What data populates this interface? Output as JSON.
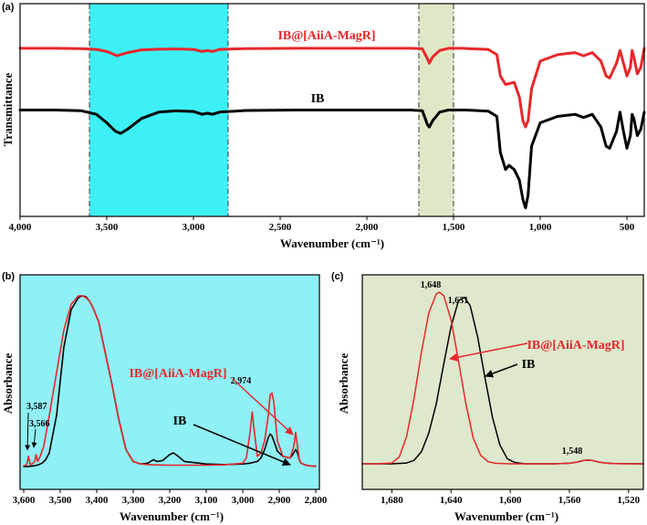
{
  "colors": {
    "red": "#e8262a",
    "black": "#000000",
    "cyan": "#3df0f5",
    "olive": "#dfe8c6",
    "panel_b_bg": "#8ff0f5",
    "panel_c_bg": "#dee8cc"
  },
  "chart_data": [
    {
      "panel": "(a)",
      "type": "line",
      "xlabel": "Wavenumber (cm⁻¹)",
      "ylabel": "Transmittance",
      "xlim": [
        4000,
        400
      ],
      "xticks": [
        "4,000",
        "3,500",
        "3,000",
        "2,500",
        "2,000",
        "1,500",
        "1,000",
        "500"
      ],
      "xtick_values": [
        4000,
        3500,
        3000,
        2500,
        2000,
        1500,
        1000,
        500
      ],
      "highlight_regions": [
        {
          "from": 3600,
          "to": 2800,
          "color": "cyan"
        },
        {
          "from": 1700,
          "to": 1500,
          "color": "olive"
        }
      ],
      "series": [
        {
          "name": "IB@[AiiA-MagR]",
          "color": "red",
          "label_at": [
            2500,
            0.86
          ],
          "x": [
            4000,
            3800,
            3650,
            3560,
            3500,
            3440,
            3380,
            3300,
            3200,
            3100,
            3000,
            2950,
            2920,
            2890,
            2850,
            2700,
            2400,
            2000,
            1750,
            1680,
            1650,
            1640,
            1620,
            1580,
            1530,
            1450,
            1400,
            1300,
            1250,
            1230,
            1200,
            1150,
            1120,
            1100,
            1085,
            1070,
            1050,
            1000,
            900,
            800,
            750,
            700,
            650,
            620,
            600,
            560,
            540,
            520,
            500,
            480,
            470,
            460,
            440,
            420,
            400
          ],
          "y": [
            0.79,
            0.79,
            0.789,
            0.785,
            0.775,
            0.755,
            0.77,
            0.783,
            0.786,
            0.787,
            0.785,
            0.775,
            0.78,
            0.775,
            0.785,
            0.789,
            0.79,
            0.79,
            0.79,
            0.788,
            0.74,
            0.72,
            0.75,
            0.78,
            0.79,
            0.79,
            0.788,
            0.785,
            0.76,
            0.66,
            0.62,
            0.63,
            0.56,
            0.45,
            0.42,
            0.45,
            0.6,
            0.73,
            0.76,
            0.77,
            0.755,
            0.77,
            0.73,
            0.66,
            0.65,
            0.72,
            0.78,
            0.72,
            0.66,
            0.7,
            0.78,
            0.75,
            0.67,
            0.7,
            0.79
          ]
        },
        {
          "name": "IB",
          "color": "black",
          "label_at": [
            2750,
            0.57
          ],
          "x": [
            4000,
            3800,
            3650,
            3560,
            3500,
            3450,
            3420,
            3380,
            3300,
            3200,
            3100,
            3000,
            2950,
            2920,
            2890,
            2850,
            2700,
            2400,
            2000,
            1750,
            1680,
            1650,
            1640,
            1620,
            1580,
            1530,
            1450,
            1400,
            1300,
            1250,
            1230,
            1200,
            1180,
            1150,
            1120,
            1100,
            1085,
            1070,
            1050,
            1000,
            900,
            800,
            750,
            700,
            650,
            620,
            600,
            560,
            540,
            520,
            500,
            480,
            470,
            460,
            440,
            420,
            400
          ],
          "y": [
            0.5,
            0.5,
            0.497,
            0.48,
            0.44,
            0.4,
            0.39,
            0.41,
            0.46,
            0.49,
            0.496,
            0.493,
            0.48,
            0.485,
            0.48,
            0.49,
            0.498,
            0.5,
            0.5,
            0.5,
            0.497,
            0.43,
            0.42,
            0.45,
            0.49,
            0.5,
            0.5,
            0.499,
            0.495,
            0.47,
            0.3,
            0.22,
            0.24,
            0.22,
            0.17,
            0.08,
            0.04,
            0.1,
            0.33,
            0.44,
            0.47,
            0.48,
            0.465,
            0.48,
            0.42,
            0.33,
            0.32,
            0.4,
            0.49,
            0.4,
            0.32,
            0.38,
            0.48,
            0.46,
            0.38,
            0.41,
            0.49
          ]
        }
      ]
    },
    {
      "panel": "(b)",
      "type": "line",
      "xlabel": "Wavenumber (cm⁻¹)",
      "ylabel": "Absorbance",
      "xlim": [
        3600,
        2800
      ],
      "xticks": [
        "3,600",
        "3,500",
        "3,400",
        "3,300",
        "3,200",
        "3,100",
        "3,000",
        "2,900",
        "2,800"
      ],
      "xtick_values": [
        3600,
        3500,
        3400,
        3300,
        3200,
        3100,
        3000,
        2900,
        2800
      ],
      "annotations": [
        {
          "text": "3,587",
          "x": 3587
        },
        {
          "text": "3,566",
          "x": 3566
        },
        {
          "text": "2,974",
          "x": 2974
        }
      ],
      "series_labels": [
        {
          "text": "IB@[AiiA-MagR]",
          "color": "red",
          "arrow_to": [
            2974,
            0.27
          ]
        },
        {
          "text": "IB",
          "color": "black",
          "arrow_to": [
            2960,
            0.04
          ]
        }
      ],
      "series": [
        {
          "name": "IB@[AiiA-MagR]",
          "color": "red",
          "x": [
            3600,
            3592,
            3587,
            3582,
            3575,
            3570,
            3566,
            3562,
            3555,
            3545,
            3530,
            3510,
            3490,
            3470,
            3450,
            3440,
            3430,
            3420,
            3410,
            3395,
            3380,
            3360,
            3340,
            3320,
            3300,
            3280,
            3250,
            3200,
            3150,
            3100,
            3050,
            3000,
            2990,
            2980,
            2974,
            2968,
            2960,
            2950,
            2940,
            2930,
            2925,
            2920,
            2915,
            2905,
            2890,
            2870,
            2860,
            2855,
            2850,
            2845,
            2840,
            2830,
            2820,
            2810,
            2800
          ],
          "y": [
            0.005,
            0.01,
            0.06,
            0.01,
            0.02,
            0.03,
            0.07,
            0.03,
            0.06,
            0.12,
            0.3,
            0.55,
            0.8,
            0.95,
            1.0,
            1.0,
            0.99,
            0.97,
            0.93,
            0.85,
            0.7,
            0.5,
            0.28,
            0.1,
            0.03,
            0.015,
            0.01,
            0.008,
            0.008,
            0.008,
            0.01,
            0.02,
            0.05,
            0.2,
            0.32,
            0.2,
            0.06,
            0.08,
            0.15,
            0.3,
            0.42,
            0.43,
            0.38,
            0.15,
            0.06,
            0.05,
            0.12,
            0.2,
            0.12,
            0.04,
            0.02,
            0.01,
            0.005,
            0.003,
            0.002
          ]
        },
        {
          "name": "IB",
          "color": "black",
          "x": [
            3600,
            3590,
            3580,
            3570,
            3560,
            3550,
            3540,
            3530,
            3510,
            3490,
            3470,
            3450,
            3440,
            3430,
            3420,
            3410,
            3395,
            3380,
            3360,
            3340,
            3320,
            3300,
            3280,
            3260,
            3245,
            3235,
            3220,
            3200,
            3190,
            3180,
            3160,
            3100,
            3050,
            3000,
            2980,
            2960,
            2950,
            2940,
            2930,
            2925,
            2920,
            2915,
            2905,
            2890,
            2870,
            2860,
            2855,
            2850,
            2845,
            2840,
            2830,
            2820,
            2810,
            2800
          ],
          "y": [
            0.0,
            0.0,
            0.002,
            0.005,
            0.01,
            0.02,
            0.04,
            0.08,
            0.3,
            0.7,
            0.92,
            0.99,
            1.0,
            0.995,
            0.97,
            0.93,
            0.85,
            0.7,
            0.5,
            0.28,
            0.1,
            0.03,
            0.015,
            0.02,
            0.04,
            0.03,
            0.035,
            0.07,
            0.08,
            0.065,
            0.03,
            0.015,
            0.012,
            0.015,
            0.02,
            0.03,
            0.05,
            0.1,
            0.17,
            0.19,
            0.18,
            0.15,
            0.09,
            0.06,
            0.05,
            0.08,
            0.1,
            0.08,
            0.04,
            0.02,
            0.01,
            0.005,
            0.003,
            0.002
          ]
        }
      ]
    },
    {
      "panel": "(c)",
      "type": "line",
      "xlabel": "Wavenumber (cm⁻¹)",
      "ylabel": "Absorbance",
      "xlim": [
        1700,
        1510
      ],
      "xticks": [
        "1,680",
        "1,640",
        "1,600",
        "1,560",
        "1,520"
      ],
      "xtick_values": [
        1680,
        1640,
        1600,
        1560,
        1520
      ],
      "annotations": [
        {
          "text": "1,648",
          "x": 1648
        },
        {
          "text": "1,631",
          "x": 1631
        },
        {
          "text": "1,548",
          "x": 1548
        }
      ],
      "series_labels": [
        {
          "text": "IB@[AiiA-MagR]",
          "color": "red",
          "arrow_to": [
            1641,
            0.6
          ]
        },
        {
          "text": "IB",
          "color": "black",
          "arrow_to": [
            1619,
            0.5
          ]
        }
      ],
      "series": [
        {
          "name": "IB@[AiiA-MagR]",
          "color": "red",
          "x": [
            1700,
            1690,
            1680,
            1675,
            1670,
            1665,
            1660,
            1655,
            1650,
            1648,
            1645,
            1640,
            1635,
            1630,
            1625,
            1620,
            1615,
            1610,
            1600,
            1590,
            1580,
            1570,
            1560,
            1555,
            1550,
            1548,
            1545,
            1540,
            1535,
            1530,
            1520,
            1510
          ],
          "y": [
            0.0,
            0.0,
            0.005,
            0.04,
            0.16,
            0.38,
            0.65,
            0.88,
            0.99,
            1.0,
            0.98,
            0.84,
            0.6,
            0.35,
            0.15,
            0.05,
            0.012,
            0.003,
            0.0,
            0.0,
            0.0,
            0.0,
            0.003,
            0.01,
            0.02,
            0.022,
            0.02,
            0.01,
            0.004,
            0.001,
            0.0,
            0.0
          ]
        },
        {
          "name": "IB",
          "color": "black",
          "x": [
            1700,
            1680,
            1670,
            1665,
            1660,
            1655,
            1650,
            1645,
            1640,
            1635,
            1631,
            1627,
            1622,
            1617,
            1612,
            1607,
            1602,
            1597,
            1590,
            1580,
            1570,
            1560,
            1555,
            1550,
            1548,
            1545,
            1540,
            1535,
            1530,
            1510
          ],
          "y": [
            0.0,
            0.0,
            0.005,
            0.02,
            0.07,
            0.18,
            0.35,
            0.58,
            0.8,
            0.95,
            0.97,
            0.92,
            0.74,
            0.5,
            0.27,
            0.11,
            0.03,
            0.008,
            0.0,
            0.0,
            0.0,
            0.003,
            0.01,
            0.02,
            0.022,
            0.02,
            0.01,
            0.004,
            0.001,
            0.0
          ]
        }
      ]
    }
  ]
}
